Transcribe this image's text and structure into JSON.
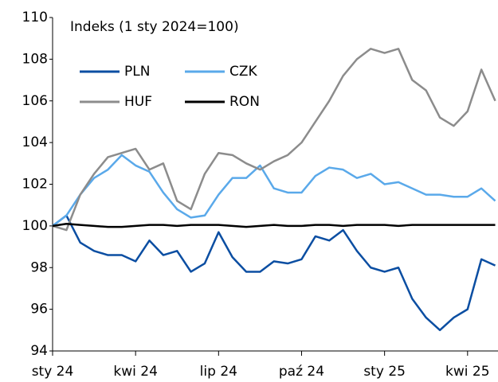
{
  "chart_data": {
    "type": "line",
    "title": "Indeks (1 sty 2024=100)",
    "x": [
      0,
      0.5,
      1,
      1.5,
      2,
      2.5,
      3,
      3.5,
      4,
      4.5,
      5,
      5.5,
      6,
      6.5,
      7,
      7.5,
      8,
      8.5,
      9,
      9.5,
      10,
      10.5,
      11,
      11.5,
      12,
      12.5,
      13,
      13.5,
      14,
      14.5,
      15,
      15.5,
      16
    ],
    "xlim": [
      0,
      16.1
    ],
    "xticks": [
      {
        "value": 0,
        "label": "sty 24"
      },
      {
        "value": 3,
        "label": "kwi 24"
      },
      {
        "value": 6,
        "label": "lip 24"
      },
      {
        "value": 9,
        "label": "paź 24"
      },
      {
        "value": 12,
        "label": "sty 25"
      },
      {
        "value": 15,
        "label": "kwi 25"
      }
    ],
    "ylim": [
      94,
      110
    ],
    "yticks": [
      94,
      96,
      98,
      100,
      102,
      104,
      106,
      108,
      110
    ],
    "grid": false,
    "series": [
      {
        "name": "PLN",
        "color": "#0b4ea2",
        "values": [
          100,
          100.5,
          99.2,
          98.8,
          98.6,
          98.6,
          98.3,
          99.3,
          98.6,
          98.8,
          97.8,
          98.2,
          99.7,
          98.5,
          97.8,
          97.8,
          98.3,
          98.2,
          98.4,
          99.5,
          99.3,
          99.8,
          98.8,
          98.0,
          97.8,
          98.0,
          96.5,
          95.6,
          95.0,
          95.6,
          96.0,
          98.4,
          98.1
        ]
      },
      {
        "name": "CZK",
        "color": "#5aa9ea",
        "values": [
          100,
          100.5,
          101.5,
          102.3,
          102.7,
          103.4,
          102.9,
          102.6,
          101.6,
          100.8,
          100.4,
          100.5,
          101.5,
          102.3,
          102.3,
          102.9,
          101.8,
          101.6,
          101.6,
          102.4,
          102.8,
          102.7,
          102.3,
          102.5,
          102.0,
          102.1,
          101.8,
          101.5,
          101.5,
          101.4,
          101.4,
          101.8,
          101.2
        ]
      },
      {
        "name": "HUF",
        "color": "#8c8c8c",
        "values": [
          100,
          99.8,
          101.5,
          102.5,
          103.3,
          103.5,
          103.7,
          102.7,
          103.0,
          101.2,
          100.8,
          102.5,
          103.5,
          103.4,
          103.0,
          102.7,
          103.1,
          103.4,
          104.0,
          105.0,
          106.0,
          107.2,
          108.0,
          108.5,
          108.3,
          108.5,
          107.0,
          106.5,
          105.2,
          104.8,
          105.5,
          107.5,
          106.0
        ]
      },
      {
        "name": "RON",
        "color": "#000000",
        "values": [
          100,
          100.1,
          100.05,
          100.0,
          99.95,
          99.95,
          100.0,
          100.05,
          100.05,
          100.0,
          100.05,
          100.05,
          100.05,
          100.0,
          99.95,
          100.0,
          100.05,
          100.0,
          100.0,
          100.05,
          100.05,
          100.0,
          100.05,
          100.05,
          100.05,
          100.0,
          100.05,
          100.05,
          100.05,
          100.05,
          100.05,
          100.05,
          100.05
        ]
      }
    ]
  }
}
